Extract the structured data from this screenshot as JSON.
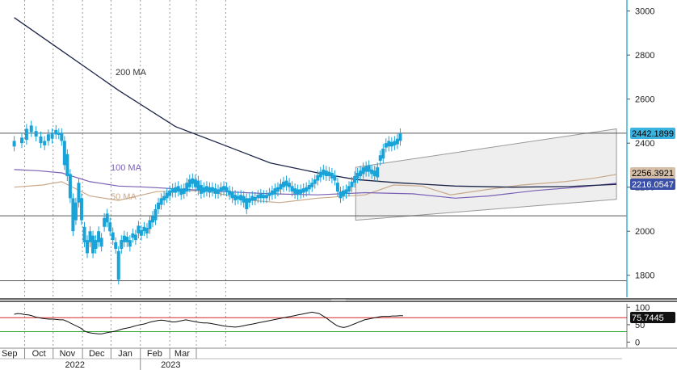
{
  "chart_data": [
    {
      "type": "candlestick",
      "y_axis": {
        "side": "right",
        "min": 1700,
        "max": 3050,
        "ticks": [
          1800,
          2000,
          2200,
          2400,
          2600,
          2800,
          3000
        ]
      },
      "x_axis": {
        "months": [
          "Sep",
          "Oct",
          "Nov",
          "Dec",
          "Jan",
          "Feb",
          "Mar"
        ],
        "years": [
          "2022",
          "2023"
        ]
      },
      "annotations": {
        "ma200": "200 MA",
        "ma100": "100 MA",
        "ma50": "50 MA"
      },
      "last_values": {
        "price": "2442.1899",
        "ma50": "2256.3921",
        "ma100": "2216.0547"
      },
      "colors": {
        "candle": "#1aa3d9",
        "ma200": "#1c2548",
        "ma100": "#7a5fb4",
        "ma50": "#c9a98a",
        "channel_fill": "#eeeeee",
        "grid": "#9a9a9a",
        "tag_price": "#3bb3e0",
        "tag_ma50": "#d6bfa8",
        "tag_ma100": "#3a4fa8"
      },
      "horizontal_lines": [
        2445,
        2070,
        1775
      ],
      "channel": {
        "upper": [
          [
            2040,
            2290
          ],
          [
            2315,
            2465
          ]
        ],
        "lower": [
          [
            2040,
            2050
          ],
          [
            2315,
            2145
          ]
        ]
      },
      "sma200": [
        [
          1680,
          2970
        ],
        [
          1730,
          2820
        ],
        [
          1790,
          2640
        ],
        [
          1850,
          2475
        ],
        [
          1905,
          2385
        ],
        [
          1950,
          2310
        ],
        [
          2000,
          2265
        ],
        [
          2040,
          2235
        ],
        [
          2085,
          2220
        ],
        [
          2145,
          2205
        ],
        [
          2205,
          2200
        ],
        [
          2265,
          2203
        ],
        [
          2315,
          2213
        ]
      ],
      "sma100": [
        [
          1680,
          2280
        ],
        [
          1705,
          2275
        ],
        [
          1730,
          2265
        ],
        [
          1760,
          2225
        ],
        [
          1790,
          2205
        ],
        [
          1820,
          2200
        ],
        [
          1860,
          2190
        ],
        [
          1900,
          2180
        ],
        [
          1950,
          2170
        ],
        [
          2000,
          2165
        ],
        [
          2050,
          2175
        ],
        [
          2100,
          2170
        ],
        [
          2145,
          2150
        ],
        [
          2180,
          2160
        ],
        [
          2230,
          2185
        ],
        [
          2275,
          2200
        ],
        [
          2315,
          2218
        ]
      ],
      "sma50": [
        [
          1680,
          2200
        ],
        [
          1710,
          2210
        ],
        [
          1730,
          2225
        ],
        [
          1760,
          2160
        ],
        [
          1790,
          2140
        ],
        [
          1830,
          2180
        ],
        [
          1880,
          2185
        ],
        [
          1930,
          2140
        ],
        [
          1960,
          2130
        ],
        [
          2000,
          2150
        ],
        [
          2050,
          2165
        ],
        [
          2080,
          2210
        ],
        [
          2110,
          2205
        ],
        [
          2140,
          2165
        ],
        [
          2180,
          2190
        ],
        [
          2215,
          2210
        ],
        [
          2260,
          2225
        ],
        [
          2290,
          2240
        ],
        [
          2315,
          2258
        ]
      ],
      "ohlc": [
        [
          1680,
          2385,
          2410
        ],
        [
          1688,
          2400,
          2425
        ],
        [
          1693,
          2415,
          2465
        ],
        [
          1698,
          2450,
          2480
        ],
        [
          1703,
          2430,
          2455
        ],
        [
          1708,
          2400,
          2430
        ],
        [
          1712,
          2390,
          2410
        ],
        [
          1716,
          2410,
          2440
        ],
        [
          1720,
          2420,
          2445
        ],
        [
          1724,
          2440,
          2460
        ],
        [
          1727,
          2440,
          2445
        ],
        [
          1730,
          2410,
          2445
        ],
        [
          1733,
          2300,
          2410
        ],
        [
          1736,
          2250,
          2350
        ],
        [
          1739,
          2150,
          2260
        ],
        [
          1742,
          2000,
          2150
        ],
        [
          1745,
          2050,
          2130
        ],
        [
          1748,
          2130,
          2220
        ],
        [
          1751,
          2050,
          2150
        ],
        [
          1754,
          1950,
          2020
        ],
        [
          1757,
          1900,
          1960
        ],
        [
          1760,
          1950,
          2000
        ],
        [
          1763,
          1900,
          1980
        ],
        [
          1766,
          1920,
          1960
        ],
        [
          1769,
          1950,
          2000
        ],
        [
          1772,
          1930,
          1970
        ],
        [
          1775,
          2020,
          2060
        ],
        [
          1778,
          2040,
          2080
        ],
        [
          1781,
          2000,
          2040
        ],
        [
          1784,
          1960,
          1995
        ],
        [
          1787,
          1920,
          1950
        ],
        [
          1790,
          1780,
          1910
        ],
        [
          1793,
          1920,
          1960
        ],
        [
          1796,
          1950,
          1980
        ],
        [
          1799,
          1950,
          1975
        ],
        [
          1802,
          1930,
          1960
        ],
        [
          1805,
          1970,
          1990
        ],
        [
          1808,
          1960,
          1985
        ],
        [
          1811,
          1990,
          2025
        ],
        [
          1814,
          1980,
          2005
        ],
        [
          1817,
          2000,
          2020
        ],
        [
          1820,
          1990,
          2015
        ],
        [
          1823,
          2010,
          2050
        ],
        [
          1826,
          2040,
          2070
        ],
        [
          1829,
          2050,
          2100
        ],
        [
          1832,
          2100,
          2130
        ],
        [
          1835,
          2120,
          2150
        ],
        [
          1838,
          2140,
          2160
        ],
        [
          1841,
          2150,
          2175
        ],
        [
          1844,
          2160,
          2185
        ],
        [
          1847,
          2175,
          2195
        ],
        [
          1850,
          2175,
          2200
        ],
        [
          1853,
          2180,
          2205
        ],
        [
          1856,
          2165,
          2190
        ],
        [
          1859,
          2170,
          2195
        ],
        [
          1862,
          2180,
          2220
        ],
        [
          1865,
          2200,
          2235
        ],
        [
          1868,
          2215,
          2240
        ],
        [
          1871,
          2200,
          2235
        ],
        [
          1874,
          2185,
          2230
        ],
        [
          1877,
          2170,
          2210
        ],
        [
          1880,
          2175,
          2200
        ],
        [
          1883,
          2180,
          2205
        ],
        [
          1886,
          2175,
          2200
        ],
        [
          1889,
          2180,
          2200
        ],
        [
          1892,
          2170,
          2195
        ],
        [
          1895,
          2170,
          2190
        ],
        [
          1898,
          2180,
          2200
        ],
        [
          1901,
          2185,
          2205
        ],
        [
          1904,
          2180,
          2200
        ],
        [
          1907,
          2165,
          2185
        ],
        [
          1910,
          2150,
          2180
        ],
        [
          1913,
          2140,
          2165
        ],
        [
          1916,
          2145,
          2160
        ],
        [
          1919,
          2140,
          2165
        ],
        [
          1922,
          2130,
          2160
        ],
        [
          1925,
          2100,
          2150
        ],
        [
          1928,
          2130,
          2150
        ],
        [
          1931,
          2140,
          2160
        ],
        [
          1934,
          2140,
          2155
        ],
        [
          1937,
          2150,
          2165
        ],
        [
          1940,
          2150,
          2170
        ],
        [
          1943,
          2150,
          2165
        ],
        [
          1946,
          2150,
          2165
        ],
        [
          1949,
          2160,
          2175
        ],
        [
          1952,
          2165,
          2185
        ],
        [
          1955,
          2170,
          2195
        ],
        [
          1958,
          2180,
          2200
        ],
        [
          1961,
          2190,
          2215
        ],
        [
          1964,
          2200,
          2225
        ],
        [
          1967,
          2205,
          2230
        ],
        [
          1970,
          2200,
          2220
        ],
        [
          1973,
          2180,
          2205
        ],
        [
          1976,
          2170,
          2195
        ],
        [
          1979,
          2165,
          2190
        ],
        [
          1982,
          2170,
          2190
        ],
        [
          1985,
          2175,
          2195
        ],
        [
          1988,
          2180,
          2200
        ],
        [
          1991,
          2190,
          2210
        ],
        [
          1994,
          2200,
          2220
        ],
        [
          1997,
          2215,
          2235
        ],
        [
          2000,
          2230,
          2255
        ],
        [
          2003,
          2245,
          2270
        ],
        [
          2006,
          2255,
          2280
        ],
        [
          2009,
          2250,
          2275
        ],
        [
          2012,
          2250,
          2270
        ],
        [
          2015,
          2240,
          2265
        ],
        [
          2018,
          2230,
          2255
        ],
        [
          2021,
          2180,
          2220
        ],
        [
          2024,
          2150,
          2180
        ],
        [
          2027,
          2160,
          2185
        ],
        [
          2030,
          2170,
          2190
        ],
        [
          2033,
          2180,
          2205
        ],
        [
          2036,
          2200,
          2225
        ],
        [
          2039,
          2220,
          2250
        ],
        [
          2042,
          2240,
          2265
        ],
        [
          2045,
          2250,
          2275
        ],
        [
          2048,
          2260,
          2290
        ],
        [
          2051,
          2270,
          2295
        ],
        [
          2054,
          2270,
          2300
        ],
        [
          2057,
          2260,
          2280
        ],
        [
          2060,
          2250,
          2275
        ],
        [
          2063,
          2245,
          2290
        ],
        [
          2066,
          2320,
          2345
        ],
        [
          2069,
          2330,
          2375
        ],
        [
          2072,
          2380,
          2400
        ],
        [
          2075,
          2385,
          2410
        ],
        [
          2078,
          2385,
          2405
        ],
        [
          2081,
          2390,
          2410
        ],
        [
          2084,
          2395,
          2420
        ],
        [
          2087,
          2410,
          2445
        ]
      ]
    },
    {
      "type": "line",
      "y_axis": {
        "side": "right",
        "min": -15,
        "max": 110,
        "ticks": [
          0,
          50,
          100
        ]
      },
      "levels": [
        70,
        30
      ],
      "last_value": "75.7445",
      "colors": {
        "line": "#111111",
        "overbought": "#d62828",
        "oversold": "#33aa33",
        "tag": "#111111"
      },
      "values": [
        80,
        82,
        81,
        79,
        78,
        76,
        72,
        70,
        68,
        67,
        66,
        66,
        65,
        64,
        64,
        60,
        55,
        50,
        45,
        40,
        32,
        28,
        26,
        25,
        24,
        24,
        26,
        28,
        30,
        32,
        35,
        38,
        40,
        42,
        45,
        48,
        50,
        52,
        55,
        58,
        60,
        62,
        63,
        62,
        60,
        58,
        58,
        60,
        62,
        64,
        62,
        60,
        58,
        56,
        55,
        55,
        54,
        52,
        50,
        48,
        46,
        45,
        44,
        43,
        44,
        46,
        48,
        50,
        52,
        54,
        56,
        58,
        60,
        62,
        64,
        66,
        68,
        70,
        72,
        74,
        76,
        78,
        80,
        82,
        84,
        86,
        84,
        82,
        76,
        70,
        62,
        55,
        48,
        44,
        42,
        44,
        48,
        52,
        56,
        60,
        64,
        66,
        68,
        70,
        72,
        74,
        74,
        74,
        75,
        75,
        76,
        76
      ]
    }
  ]
}
